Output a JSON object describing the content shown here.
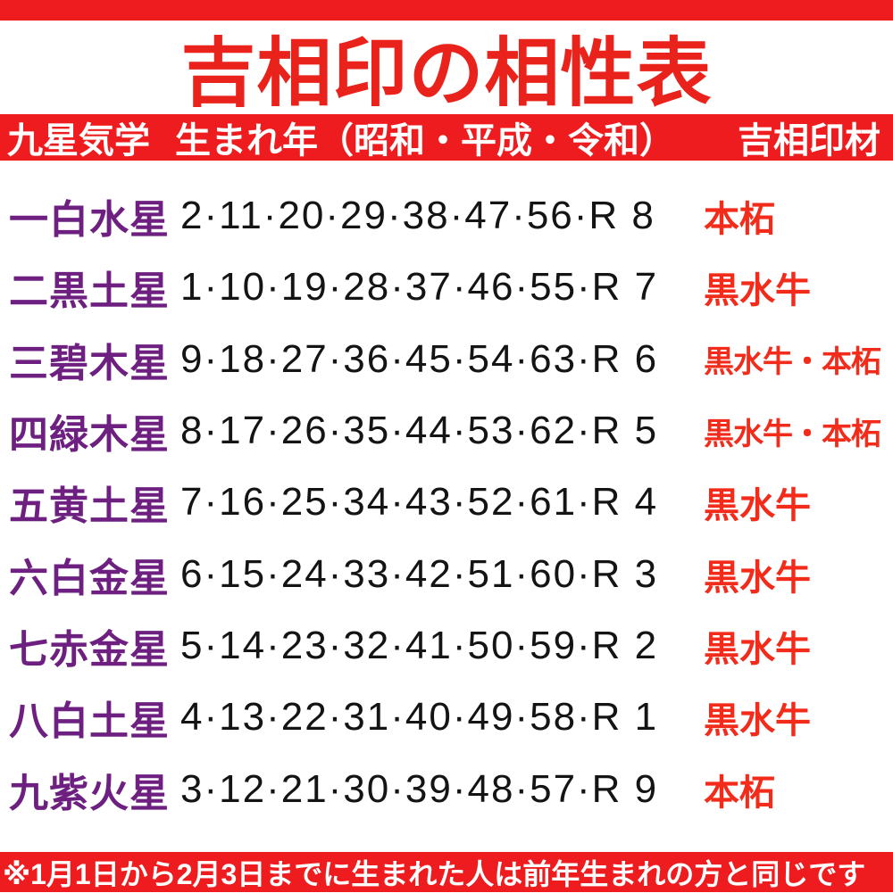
{
  "chart_data": {
    "type": "table",
    "title": "吉相印の相性表",
    "columns": [
      "九星気学",
      "生まれ年（昭和・平成・令和）",
      "吉相印材"
    ],
    "rows": [
      {
        "star": "一白水星",
        "years": "2·11·20·29·38·47·56·R 8",
        "material": "本柘"
      },
      {
        "star": "二黒土星",
        "years": "1·10·19·28·37·46·55·R 7",
        "material": "黒水牛"
      },
      {
        "star": "三碧木星",
        "years": "9·18·27·36·45·54·63·R 6",
        "material": "黒水牛・本柘"
      },
      {
        "star": "四緑木星",
        "years": "8·17·26·35·44·53·62·R 5",
        "material": "黒水牛・本柘"
      },
      {
        "star": "五黄土星",
        "years": "7·16·25·34·43·52·61·R 4",
        "material": "黒水牛"
      },
      {
        "star": "六白金星",
        "years": "6·15·24·33·42·51·60·R 3",
        "material": "黒水牛"
      },
      {
        "star": "七赤金星",
        "years": "5·14·23·32·41·50·59·R 2",
        "material": "黒水牛"
      },
      {
        "star": "八白土星",
        "years": "4·13·22·31·40·49·58·R 1",
        "material": "黒水牛"
      },
      {
        "star": "九紫火星",
        "years": "3·12·21·30·39·48·57·R 9",
        "material": "本柘"
      }
    ],
    "footnote": "※1月1日から2月3日までに生まれた人は前年生まれの方と同じです",
    "legend_position": "none",
    "grid": false
  },
  "colors": {
    "bar_red": "#ee1c1e",
    "title_red": "#e9231c",
    "star_purple": "#6e2080",
    "years_black": "#141414",
    "material_red": "#f22b1a",
    "bar_text_white": "#ffffff"
  }
}
